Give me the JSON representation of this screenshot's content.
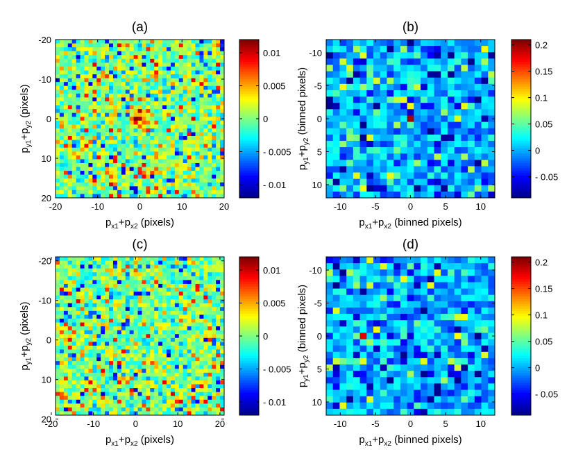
{
  "figure": {
    "colormap": "jet",
    "cmap_colors": [
      "#00008f",
      "#0000ff",
      "#00ffff",
      "#80ff80",
      "#ffff00",
      "#ff0000",
      "#800000"
    ]
  },
  "chart_data": [
    {
      "panel": "a",
      "type": "heatmap",
      "title": "(a)",
      "xlabel": "p_{x1}+p_{x2} (pixels)",
      "ylabel": "p_{y1}+p_{y2} (pixels)",
      "x_range": [
        -20,
        20
      ],
      "y_range": [
        -20,
        20
      ],
      "y_reversed": true,
      "x_ticks": [
        "-20",
        "-10",
        "0",
        "10",
        "20"
      ],
      "x_tick_values": [
        -20,
        -10,
        0,
        10,
        20
      ],
      "y_ticks": [
        "-20",
        "-10",
        "0",
        "10",
        "20"
      ],
      "y_tick_values": [
        -20,
        -10,
        0,
        10,
        20
      ],
      "grid_size": 41,
      "clim": [
        -0.012,
        0.012
      ],
      "colorbar_ticks": [
        "0.01",
        "0.005",
        "0",
        "- 0.005",
        "- 0.01"
      ],
      "colorbar_tick_values": [
        0.01,
        0.005,
        0,
        -0.005,
        -0.01
      ],
      "peak": {
        "x": 0,
        "y": 0,
        "value": 0.012
      },
      "noise_level": 0.0035,
      "seed": 11
    },
    {
      "panel": "b",
      "type": "heatmap",
      "title": "(b)",
      "xlabel": "p_{x1}+p_{x2} (binned pixels)",
      "ylabel": "p_{y1}+p_{y2} (binned pixels)",
      "x_range": [
        -12,
        12
      ],
      "y_range": [
        -12,
        12
      ],
      "y_reversed": true,
      "x_ticks": [
        "-10",
        "-5",
        "0",
        "5",
        "10"
      ],
      "x_tick_values": [
        -10,
        -5,
        0,
        5,
        10
      ],
      "y_ticks": [
        "-10",
        "-5",
        "0",
        "5",
        "10"
      ],
      "y_tick_values": [
        -10,
        -5,
        0,
        5,
        10
      ],
      "grid_size": 25,
      "clim": [
        -0.09,
        0.21
      ],
      "colorbar_ticks": [
        "0.2",
        "0.15",
        "0.1",
        "0.05",
        "0",
        "- 0.05"
      ],
      "colorbar_tick_values": [
        0.2,
        0.15,
        0.1,
        0.05,
        0,
        -0.05
      ],
      "peak": {
        "x": 0,
        "y": 0,
        "value": 0.2
      },
      "noise_level": 0.035,
      "seed": 23
    },
    {
      "panel": "c",
      "type": "heatmap",
      "title": "(c)",
      "xlabel": "p_{x1}+p_{x2} (pixels)",
      "ylabel": "p_{y1}+p_{y2} (pixels)",
      "x_range": [
        -19,
        21
      ],
      "y_range": [
        -21,
        19
      ],
      "y_reversed": true,
      "x_ticks": [
        "-20",
        "-10",
        "0",
        "10",
        "20"
      ],
      "x_tick_values": [
        -20,
        -10,
        0,
        10,
        20
      ],
      "y_ticks": [
        "-20",
        "-10",
        "0",
        "10",
        "20"
      ],
      "y_tick_values": [
        -20,
        -10,
        0,
        10,
        20
      ],
      "grid_size": 41,
      "clim": [
        -0.012,
        0.012
      ],
      "colorbar_ticks": [
        "0.01",
        "0.005",
        "0",
        "- 0.005",
        "- 0.01"
      ],
      "colorbar_tick_values": [
        0.01,
        0.005,
        0,
        -0.005,
        -0.01
      ],
      "peak": null,
      "noise_level": 0.0035,
      "seed": 37
    },
    {
      "panel": "d",
      "type": "heatmap",
      "title": "(d)",
      "xlabel": "p_{x1}+p_{x2} (binned pixels)",
      "ylabel": "p_{y1}+p_{y2} (binned pixels)",
      "x_range": [
        -12,
        12
      ],
      "y_range": [
        -12,
        12
      ],
      "y_reversed": true,
      "x_ticks": [
        "-10",
        "-5",
        "0",
        "5",
        "10"
      ],
      "x_tick_values": [
        -10,
        -5,
        0,
        5,
        10
      ],
      "y_ticks": [
        "-10",
        "-5",
        "0",
        "5",
        "10"
      ],
      "y_tick_values": [
        -10,
        -5,
        0,
        5,
        10
      ],
      "grid_size": 25,
      "clim": [
        -0.09,
        0.21
      ],
      "colorbar_ticks": [
        "0.2",
        "0.15",
        "0.1",
        "0.05",
        "0",
        "- 0.05"
      ],
      "colorbar_tick_values": [
        0.2,
        0.15,
        0.1,
        0.05,
        0,
        -0.05
      ],
      "peak": {
        "x": -7,
        "y": 0,
        "value": 0.19
      },
      "noise_level": 0.035,
      "seed": 53
    }
  ]
}
